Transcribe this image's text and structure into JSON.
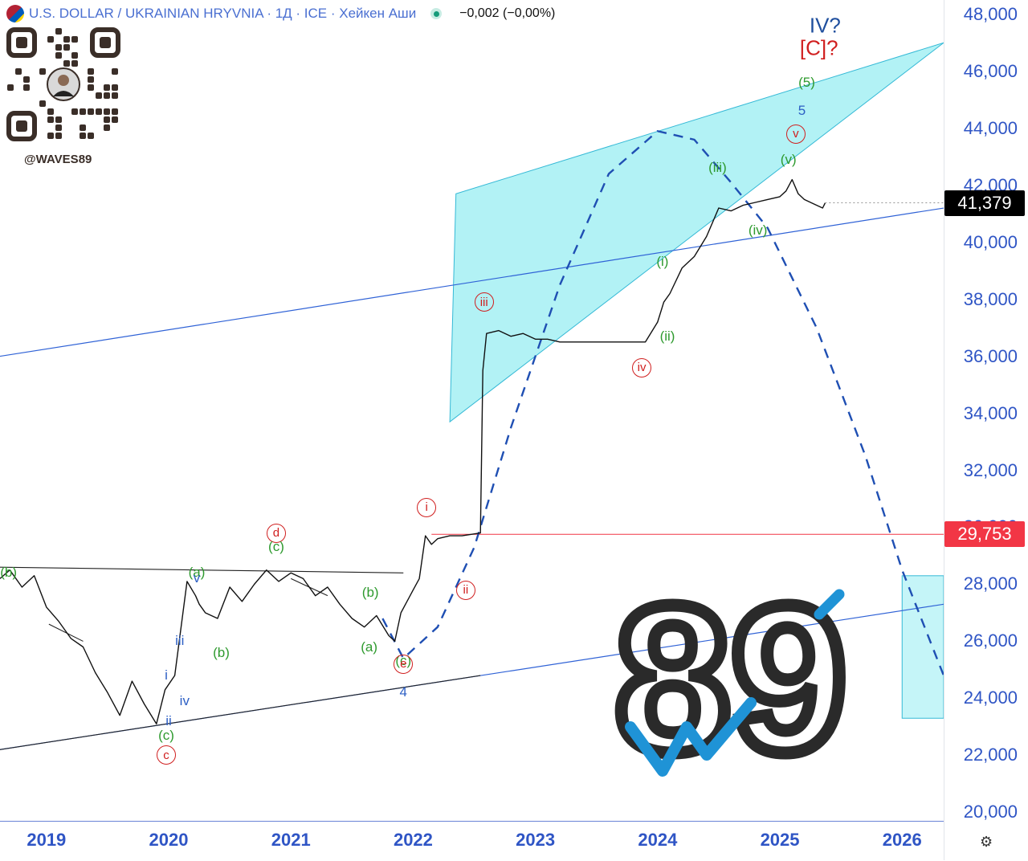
{
  "header": {
    "title": "U.S. DOLLAR / UKRAINIAN HRYVNIA · 1Д · ICE · Хейкен Аши",
    "change": "−0,002 (−0,00%)"
  },
  "watermark": {
    "handle": "@WAVES89",
    "logo_text": "89"
  },
  "price_tags": {
    "current": {
      "value": "41,379",
      "color": "#000000"
    },
    "level": {
      "value": "29,753",
      "color": "#f23645"
    }
  },
  "colors": {
    "price": "#111111",
    "channel": "#2f62d6",
    "zone_fill": "#7fe9ef",
    "zone_stroke": "#35b9d6",
    "projection": "#1f4fb3",
    "level_line": "#f23645",
    "green_labels": "#2e9a2e",
    "red_labels": "#d01f1f",
    "blue_labels": "#2c5fc4"
  },
  "chart_data": {
    "type": "line",
    "title": "U.S. DOLLAR / UKRAINIAN HRYVNIA · 1Д · ICE · Хейкен Аши",
    "y_ticks": [
      "48,000",
      "46,000",
      "44,000",
      "42,000",
      "40,000",
      "38,000",
      "36,000",
      "34,000",
      "32,000",
      "30,000",
      "28,000",
      "26,000",
      "24,000",
      "22,000",
      "20,000"
    ],
    "y_tick_values": [
      48000,
      46000,
      44000,
      42000,
      40000,
      38000,
      36000,
      34000,
      32000,
      30000,
      28000,
      26000,
      24000,
      22000,
      20000
    ],
    "x_ticks": [
      "2019",
      "2020",
      "2021",
      "2022",
      "2023",
      "2024",
      "2025",
      "2026"
    ],
    "x_tick_values": [
      2019,
      2020,
      2021,
      2022,
      2023,
      2024,
      2025,
      2026
    ],
    "xlim": [
      2018.62,
      2026.34
    ],
    "ylim": [
      19700,
      48500
    ],
    "series": [
      {
        "x": [
          2018.62,
          2018.7,
          2018.8,
          2018.9,
          2019.0,
          2019.1,
          2019.2,
          2019.3,
          2019.4,
          2019.5,
          2019.6,
          2019.7,
          2019.8,
          2019.9,
          2019.97,
          2020.05,
          2020.15,
          2020.22,
          2020.25,
          2020.3,
          2020.4,
          2020.5,
          2020.6,
          2020.7,
          2020.8,
          2020.9,
          2021.0,
          2021.1,
          2021.2,
          2021.3,
          2021.4,
          2021.5,
          2021.6,
          2021.7,
          2021.8,
          2021.85,
          2021.9,
          2022.0,
          2022.05,
          2022.1,
          2022.15,
          2022.2,
          2022.3,
          2022.4,
          2022.55,
          2022.57,
          2022.6,
          2022.7,
          2022.8,
          2022.9,
          2023.0,
          2023.1,
          2023.2,
          2023.3,
          2023.5,
          2023.7,
          2023.9,
          2024.0,
          2024.05,
          2024.1,
          2024.2,
          2024.3,
          2024.4,
          2024.45,
          2024.5,
          2024.6,
          2024.7,
          2024.8,
          2024.9,
          2025.0,
          2025.05,
          2025.1,
          2025.15,
          2025.2,
          2025.3,
          2025.35,
          2025.37
        ],
        "y": [
          28200,
          28500,
          27900,
          28300,
          27200,
          26700,
          26100,
          25800,
          24900,
          24200,
          23400,
          24600,
          23800,
          23100,
          24300,
          24800,
          28100,
          27600,
          27300,
          27000,
          26800,
          27900,
          27400,
          28000,
          28500,
          28100,
          28400,
          28200,
          27600,
          27900,
          27300,
          26800,
          26500,
          26900,
          26200,
          26000,
          27000,
          27800,
          28200,
          29700,
          29400,
          29600,
          29700,
          29700,
          29800,
          35500,
          36800,
          36900,
          36700,
          36800,
          36600,
          36600,
          36500,
          36500,
          36500,
          36500,
          36500,
          37200,
          37900,
          38200,
          39100,
          39500,
          40200,
          40700,
          41200,
          41100,
          41300,
          41400,
          41500,
          41600,
          41800,
          42200,
          41700,
          41500,
          41300,
          41200,
          41379
        ]
      }
    ],
    "current_price": 41379,
    "horizontal_level": 29753,
    "wave_labels": [
      {
        "text": "(b)",
        "color": "green",
        "x": 2018.69,
        "y": 28400
      },
      {
        "text": "(a)",
        "color": "green",
        "x": 2020.23,
        "y": 28400
      },
      {
        "text": "v",
        "color": "blue",
        "x": 2020.23,
        "y": 28200
      },
      {
        "text": "d",
        "color": "red",
        "circled": true,
        "x": 2020.88,
        "y": 29800
      },
      {
        "text": "(c)",
        "color": "green",
        "x": 2020.88,
        "y": 29300
      },
      {
        "text": "iii",
        "color": "blue",
        "x": 2020.09,
        "y": 26000
      },
      {
        "text": "(b)",
        "color": "green",
        "x": 2020.43,
        "y": 25600
      },
      {
        "text": "i",
        "color": "blue",
        "x": 2019.98,
        "y": 24800
      },
      {
        "text": "iv",
        "color": "blue",
        "x": 2020.13,
        "y": 23900
      },
      {
        "text": "ii",
        "color": "blue",
        "x": 2020.0,
        "y": 23200
      },
      {
        "text": "(c)",
        "color": "green",
        "x": 2019.98,
        "y": 22700
      },
      {
        "text": "c",
        "color": "red",
        "circled": true,
        "x": 2019.98,
        "y": 22000
      },
      {
        "text": "(b)",
        "color": "green",
        "x": 2021.65,
        "y": 27700
      },
      {
        "text": "(a)",
        "color": "green",
        "x": 2021.64,
        "y": 25800
      },
      {
        "text": "(c)",
        "color": "green",
        "x": 2021.92,
        "y": 25300
      },
      {
        "text": "e",
        "color": "red",
        "circled": true,
        "x": 2021.92,
        "y": 25200
      },
      {
        "text": "4",
        "color": "blue",
        "x": 2021.92,
        "y": 24200
      },
      {
        "text": "i",
        "color": "red",
        "circled": true,
        "x": 2022.11,
        "y": 30700
      },
      {
        "text": "ii",
        "color": "red",
        "circled": true,
        "x": 2022.43,
        "y": 27800
      },
      {
        "text": "iii",
        "color": "red",
        "circled": true,
        "x": 2022.58,
        "y": 37900
      },
      {
        "text": "iv",
        "color": "red",
        "circled": true,
        "x": 2023.87,
        "y": 35600
      },
      {
        "text": "(i)",
        "color": "green",
        "x": 2024.04,
        "y": 39300
      },
      {
        "text": "(ii)",
        "color": "green",
        "x": 2024.08,
        "y": 36700
      },
      {
        "text": "(iii)",
        "color": "green",
        "x": 2024.49,
        "y": 42600
      },
      {
        "text": "(iv)",
        "color": "green",
        "x": 2024.82,
        "y": 40400
      },
      {
        "text": "(v)",
        "color": "green",
        "x": 2025.07,
        "y": 42900
      },
      {
        "text": "v",
        "color": "red",
        "circled": true,
        "x": 2025.13,
        "y": 43800
      },
      {
        "text": "5",
        "color": "blue",
        "x": 2025.18,
        "y": 44600
      },
      {
        "text": "(5)",
        "color": "green",
        "x": 2025.22,
        "y": 45600
      },
      {
        "text": "[C]?",
        "color": "red",
        "x": 2025.32,
        "y": 46800
      },
      {
        "text": "IV?",
        "color": "navy",
        "x": 2025.37,
        "y": 47600
      }
    ],
    "projection_path": {
      "x": [
        2021.75,
        2021.92,
        2022.2,
        2022.5,
        2022.8,
        2023.2,
        2023.6,
        2024.0,
        2024.3,
        2024.6,
        2024.9,
        2025.3,
        2025.7,
        2026.0,
        2026.34
      ],
      "y": [
        26800,
        25400,
        26500,
        29300,
        33500,
        38500,
        42400,
        43900,
        43600,
        42100,
        40500,
        37000,
        32500,
        28500,
        24800
      ]
    },
    "channels": [
      {
        "x": [
          2018.62,
          2026.34
        ],
        "y": [
          36000,
          41200
        ]
      },
      {
        "x": [
          2018.62,
          2026.34
        ],
        "y": [
          22200,
          27300
        ]
      }
    ],
    "black_lines": [
      {
        "x": [
          2018.62,
          2021.92
        ],
        "y": [
          28600,
          28400
        ]
      },
      {
        "x": [
          2018.62,
          2022.55
        ],
        "y": [
          22200,
          24800
        ]
      },
      {
        "x": [
          2019.02,
          2019.3
        ],
        "y": [
          26600,
          26000
        ]
      },
      {
        "x": [
          2021.0,
          2021.3
        ],
        "y": [
          28200,
          27600
        ]
      }
    ],
    "zones": [
      {
        "type": "polygon",
        "points_x": [
          2022.35,
          2022.3,
          2026.34
        ],
        "points_y": [
          41700,
          33700,
          47000
        ]
      },
      {
        "type": "rect",
        "x": [
          2026.0,
          2026.34
        ],
        "y": [
          23300,
          28300
        ]
      }
    ]
  }
}
